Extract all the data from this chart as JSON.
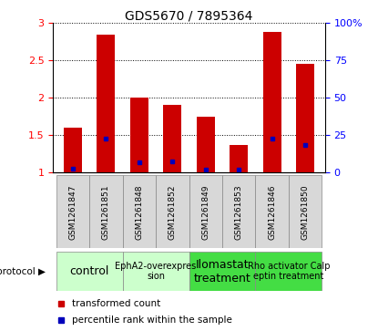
{
  "title": "GDS5670 / 7895364",
  "samples": [
    "GSM1261847",
    "GSM1261851",
    "GSM1261848",
    "GSM1261852",
    "GSM1261849",
    "GSM1261853",
    "GSM1261846",
    "GSM1261850"
  ],
  "red_values": [
    1.6,
    2.85,
    2.0,
    1.9,
    1.75,
    1.37,
    2.88,
    2.45
  ],
  "blue_values": [
    1.04,
    1.45,
    1.13,
    1.14,
    1.03,
    1.03,
    1.45,
    1.37
  ],
  "ylim": [
    1.0,
    3.0
  ],
  "yticks_left": [
    1.0,
    1.5,
    2.0,
    2.5,
    3.0
  ],
  "ytick_labels_left": [
    "1",
    "1.5",
    "2",
    "2.5",
    "3"
  ],
  "yticks_right_pct": [
    0,
    25,
    50,
    75,
    100
  ],
  "ytick_labels_right": [
    "0",
    "25",
    "50",
    "75",
    "100%"
  ],
  "red_color": "#cc0000",
  "blue_color": "#0000bb",
  "bar_width": 0.55,
  "protocols": [
    {
      "label": "control",
      "indices": [
        0,
        1
      ],
      "color": "#ccffcc",
      "text_size": 9
    },
    {
      "label": "EphA2-overexpres\nsion",
      "indices": [
        2,
        3
      ],
      "color": "#ccffcc",
      "text_size": 7
    },
    {
      "label": "Ilomastat\ntreatment",
      "indices": [
        4,
        5
      ],
      "color": "#44dd44",
      "text_size": 9
    },
    {
      "label": "Rho activator Calp\neptin treatment",
      "indices": [
        6,
        7
      ],
      "color": "#44dd44",
      "text_size": 7
    }
  ],
  "protocol_label": "protocol",
  "legend_red": "transformed count",
  "legend_blue": "percentile rank within the sample",
  "grid_color": "#000000"
}
